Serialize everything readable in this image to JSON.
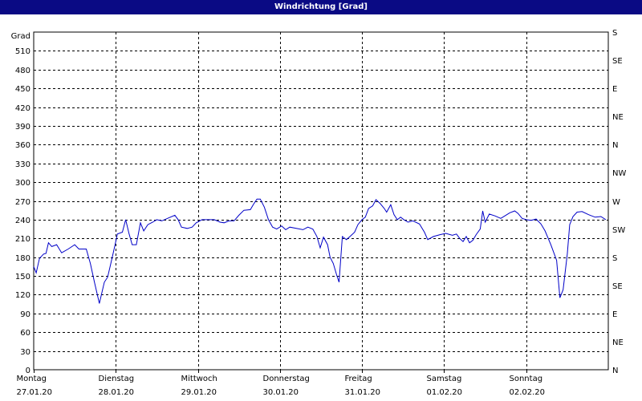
{
  "window": {
    "title": "Windrichtung [Grad]"
  },
  "colors": {
    "titlebar": "#0a0a84",
    "line": "#0000c8",
    "grid": "#000000",
    "background": "#ffffff"
  },
  "chart_data": {
    "type": "line",
    "title": "Windrichtung [Grad]",
    "ylabel": "Grad",
    "ylim": [
      0,
      540
    ],
    "y_ticks": [
      0,
      30,
      60,
      90,
      120,
      150,
      180,
      210,
      240,
      270,
      300,
      330,
      360,
      390,
      420,
      450,
      480,
      510
    ],
    "y2_ticks": [
      {
        "value": 0,
        "label": "N"
      },
      {
        "value": 45,
        "label": "NE"
      },
      {
        "value": 90,
        "label": "E"
      },
      {
        "value": 135,
        "label": "SE"
      },
      {
        "value": 180,
        "label": "S"
      },
      {
        "value": 225,
        "label": "SW"
      },
      {
        "value": 270,
        "label": "W"
      },
      {
        "value": 315,
        "label": "NW"
      },
      {
        "value": 360,
        "label": "N"
      },
      {
        "value": 405,
        "label": "NE"
      },
      {
        "value": 450,
        "label": "E"
      },
      {
        "value": 495,
        "label": "SE"
      },
      {
        "value": 540,
        "label": "S"
      }
    ],
    "xlim": [
      0,
      7
    ],
    "x_ticks": [
      {
        "value": 0,
        "day": "Montag",
        "date": "27.01.20"
      },
      {
        "value": 1,
        "day": "Dienstag",
        "date": "28.01.20"
      },
      {
        "value": 2,
        "day": "Mittwoch",
        "date": "29.01.20"
      },
      {
        "value": 3,
        "day": "Donnerstag",
        "date": "30.01.20"
      },
      {
        "value": 4,
        "day": "Freitag",
        "date": "31.01.20"
      },
      {
        "value": 5,
        "day": "Samstag",
        "date": "01.02.20"
      },
      {
        "value": 6,
        "day": "Sonntag",
        "date": "02.02.20"
      }
    ],
    "grid": true,
    "series": [
      {
        "color": "#0000c8",
        "points": [
          [
            0.0,
            165
          ],
          [
            0.03,
            155
          ],
          [
            0.07,
            178
          ],
          [
            0.12,
            185
          ],
          [
            0.15,
            186
          ],
          [
            0.18,
            203
          ],
          [
            0.22,
            197
          ],
          [
            0.28,
            200
          ],
          [
            0.34,
            187
          ],
          [
            0.42,
            193
          ],
          [
            0.5,
            200
          ],
          [
            0.55,
            193
          ],
          [
            0.64,
            193
          ],
          [
            0.69,
            170
          ],
          [
            0.74,
            140
          ],
          [
            0.8,
            106
          ],
          [
            0.86,
            140
          ],
          [
            0.9,
            148
          ],
          [
            0.94,
            170
          ],
          [
            0.98,
            193
          ],
          [
            1.02,
            217
          ],
          [
            1.08,
            220
          ],
          [
            1.12,
            240
          ],
          [
            1.16,
            218
          ],
          [
            1.2,
            200
          ],
          [
            1.25,
            200
          ],
          [
            1.3,
            235
          ],
          [
            1.34,
            222
          ],
          [
            1.39,
            232
          ],
          [
            1.45,
            236
          ],
          [
            1.5,
            240
          ],
          [
            1.56,
            238
          ],
          [
            1.63,
            242
          ],
          [
            1.72,
            247
          ],
          [
            1.76,
            240
          ],
          [
            1.8,
            228
          ],
          [
            1.87,
            226
          ],
          [
            1.93,
            228
          ],
          [
            1.98,
            235
          ],
          [
            2.05,
            240
          ],
          [
            2.12,
            240
          ],
          [
            2.2,
            240
          ],
          [
            2.27,
            236
          ],
          [
            2.32,
            235
          ],
          [
            2.38,
            238
          ],
          [
            2.44,
            238
          ],
          [
            2.5,
            247
          ],
          [
            2.56,
            255
          ],
          [
            2.64,
            256
          ],
          [
            2.68,
            265
          ],
          [
            2.72,
            273
          ],
          [
            2.76,
            273
          ],
          [
            2.81,
            260
          ],
          [
            2.86,
            240
          ],
          [
            2.91,
            228
          ],
          [
            2.96,
            225
          ],
          [
            3.02,
            230
          ],
          [
            3.07,
            224
          ],
          [
            3.12,
            228
          ],
          [
            3.2,
            226
          ],
          [
            3.28,
            224
          ],
          [
            3.34,
            228
          ],
          [
            3.4,
            225
          ],
          [
            3.45,
            213
          ],
          [
            3.49,
            195
          ],
          [
            3.53,
            212
          ],
          [
            3.58,
            200
          ],
          [
            3.61,
            180
          ],
          [
            3.65,
            170
          ],
          [
            3.69,
            152
          ],
          [
            3.72,
            140
          ],
          [
            3.76,
            213
          ],
          [
            3.81,
            208
          ],
          [
            3.86,
            214
          ],
          [
            3.91,
            220
          ],
          [
            3.95,
            232
          ],
          [
            4.0,
            240
          ],
          [
            4.04,
            244
          ],
          [
            4.08,
            258
          ],
          [
            4.13,
            262
          ],
          [
            4.17,
            272
          ],
          [
            4.22,
            266
          ],
          [
            4.27,
            258
          ],
          [
            4.3,
            252
          ],
          [
            4.35,
            264
          ],
          [
            4.39,
            248
          ],
          [
            4.43,
            240
          ],
          [
            4.47,
            244
          ],
          [
            4.51,
            240
          ],
          [
            4.56,
            236
          ],
          [
            4.62,
            238
          ],
          [
            4.7,
            233
          ],
          [
            4.76,
            220
          ],
          [
            4.8,
            208
          ],
          [
            4.87,
            213
          ],
          [
            4.95,
            216
          ],
          [
            5.02,
            218
          ],
          [
            5.1,
            215
          ],
          [
            5.15,
            217
          ],
          [
            5.19,
            210
          ],
          [
            5.23,
            205
          ],
          [
            5.27,
            213
          ],
          [
            5.31,
            203
          ],
          [
            5.35,
            207
          ],
          [
            5.39,
            216
          ],
          [
            5.44,
            225
          ],
          [
            5.47,
            254
          ],
          [
            5.5,
            236
          ],
          [
            5.55,
            249
          ],
          [
            5.62,
            246
          ],
          [
            5.69,
            242
          ],
          [
            5.74,
            246
          ],
          [
            5.8,
            251
          ],
          [
            5.86,
            254
          ],
          [
            5.9,
            250
          ],
          [
            5.95,
            242
          ],
          [
            6.0,
            240
          ],
          [
            6.06,
            239
          ],
          [
            6.12,
            241
          ],
          [
            6.18,
            233
          ],
          [
            6.23,
            222
          ],
          [
            6.3,
            200
          ],
          [
            6.37,
            175
          ],
          [
            6.41,
            115
          ],
          [
            6.45,
            128
          ],
          [
            6.5,
            185
          ],
          [
            6.53,
            232
          ],
          [
            6.57,
            245
          ],
          [
            6.62,
            252
          ],
          [
            6.68,
            253
          ],
          [
            6.76,
            248
          ],
          [
            6.84,
            244
          ],
          [
            6.91,
            245
          ],
          [
            6.97,
            240
          ]
        ]
      }
    ]
  }
}
